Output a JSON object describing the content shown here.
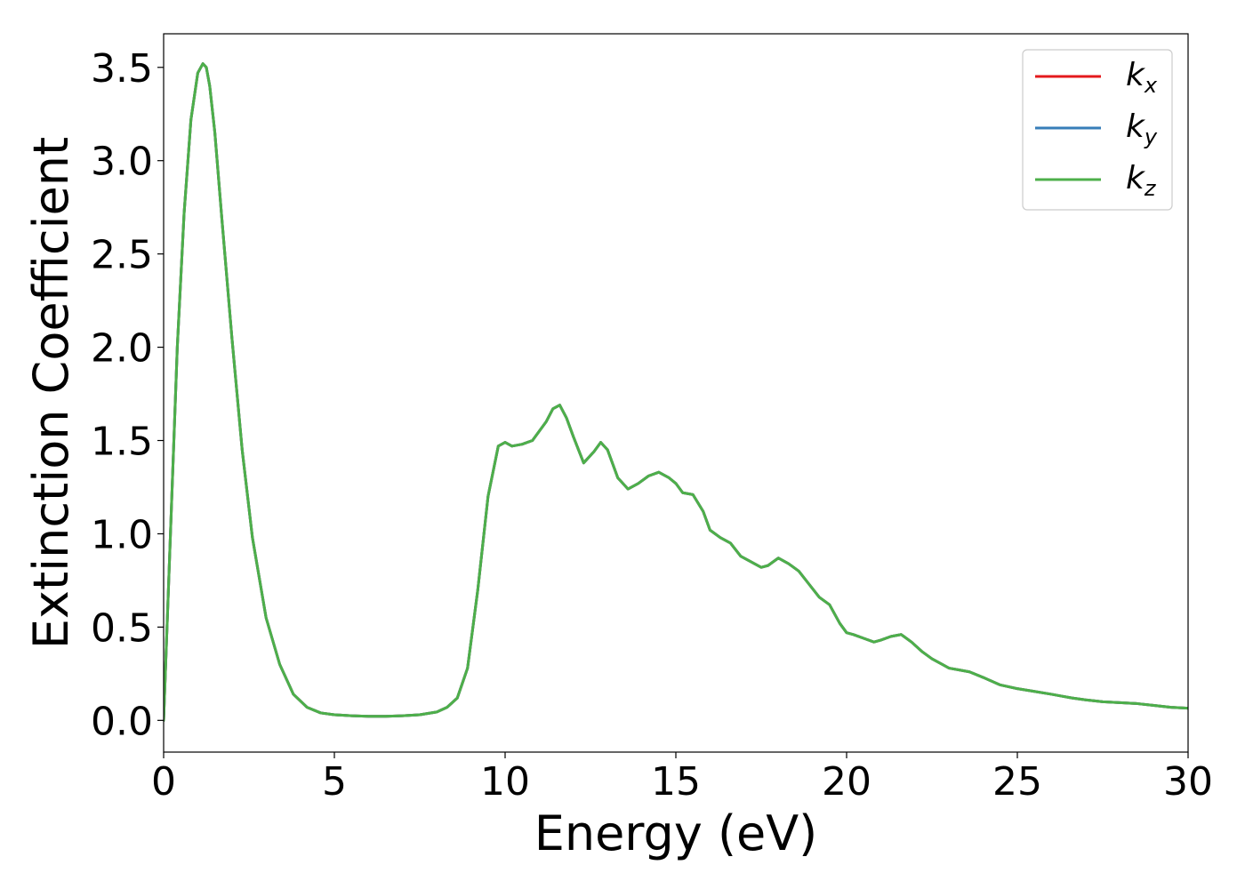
{
  "chart_data": {
    "type": "line",
    "xlabel": "Energy (eV)",
    "ylabel": "Extinction Coefficient",
    "xlim": [
      0,
      30
    ],
    "ylim": [
      -0.17,
      3.68
    ],
    "xticks": [
      0,
      5,
      10,
      15,
      20,
      25,
      30
    ],
    "xtick_labels": [
      "0",
      "5",
      "10",
      "15",
      "20",
      "25",
      "30"
    ],
    "yticks": [
      0.0,
      0.5,
      1.0,
      1.5,
      2.0,
      2.5,
      3.0,
      3.5
    ],
    "ytick_labels": [
      "0.0",
      "0.5",
      "1.0",
      "1.5",
      "2.0",
      "2.5",
      "3.0",
      "3.5"
    ],
    "grid": false,
    "legend_position": "top-right",
    "series": [
      {
        "name": "k",
        "subscript": "x",
        "color": "#e41a1c",
        "x": [
          0,
          0.2,
          0.4,
          0.6,
          0.8,
          1.0,
          1.15,
          1.25,
          1.35,
          1.5,
          1.7,
          2.0,
          2.3,
          2.6,
          3.0,
          3.4,
          3.8,
          4.2,
          4.6,
          5.0,
          5.5,
          6.0,
          6.5,
          7.0,
          7.5,
          8.0,
          8.3,
          8.6,
          8.9,
          9.2,
          9.5,
          9.8,
          10.0,
          10.2,
          10.5,
          10.8,
          11.0,
          11.2,
          11.4,
          11.6,
          11.8,
          12.0,
          12.3,
          12.6,
          12.8,
          13.0,
          13.3,
          13.6,
          13.9,
          14.2,
          14.5,
          14.8,
          15.0,
          15.2,
          15.5,
          15.8,
          16.0,
          16.3,
          16.6,
          16.9,
          17.2,
          17.5,
          17.7,
          18.0,
          18.3,
          18.6,
          18.9,
          19.2,
          19.5,
          19.8,
          20.0,
          20.2,
          20.5,
          20.8,
          21.0,
          21.3,
          21.6,
          21.9,
          22.2,
          22.5,
          22.8,
          23.0,
          23.3,
          23.6,
          24.0,
          24.5,
          25.0,
          25.5,
          26.0,
          26.3,
          26.6,
          27.0,
          27.5,
          28.0,
          28.5,
          29.0,
          29.5,
          30.0
        ],
        "y": [
          0.0,
          1.0,
          2.0,
          2.72,
          3.22,
          3.47,
          3.52,
          3.5,
          3.4,
          3.15,
          2.7,
          2.05,
          1.45,
          0.98,
          0.55,
          0.3,
          0.14,
          0.07,
          0.04,
          0.03,
          0.025,
          0.022,
          0.022,
          0.025,
          0.03,
          0.045,
          0.07,
          0.12,
          0.28,
          0.7,
          1.2,
          1.47,
          1.49,
          1.47,
          1.48,
          1.5,
          1.55,
          1.6,
          1.67,
          1.69,
          1.62,
          1.52,
          1.38,
          1.44,
          1.49,
          1.45,
          1.3,
          1.24,
          1.27,
          1.31,
          1.33,
          1.3,
          1.27,
          1.22,
          1.21,
          1.12,
          1.02,
          0.98,
          0.95,
          0.88,
          0.85,
          0.82,
          0.83,
          0.87,
          0.84,
          0.8,
          0.73,
          0.66,
          0.62,
          0.52,
          0.47,
          0.46,
          0.44,
          0.42,
          0.43,
          0.45,
          0.46,
          0.42,
          0.37,
          0.33,
          0.3,
          0.28,
          0.27,
          0.26,
          0.23,
          0.19,
          0.17,
          0.155,
          0.14,
          0.13,
          0.12,
          0.11,
          0.1,
          0.095,
          0.09,
          0.08,
          0.07,
          0.065
        ]
      },
      {
        "name": "k",
        "subscript": "y",
        "color": "#377eb8",
        "x": [
          0,
          0.2,
          0.4,
          0.6,
          0.8,
          1.0,
          1.15,
          1.25,
          1.35,
          1.5,
          1.7,
          2.0,
          2.3,
          2.6,
          3.0,
          3.4,
          3.8,
          4.2,
          4.6,
          5.0,
          5.5,
          6.0,
          6.5,
          7.0,
          7.5,
          8.0,
          8.3,
          8.6,
          8.9,
          9.2,
          9.5,
          9.8,
          10.0,
          10.2,
          10.5,
          10.8,
          11.0,
          11.2,
          11.4,
          11.6,
          11.8,
          12.0,
          12.3,
          12.6,
          12.8,
          13.0,
          13.3,
          13.6,
          13.9,
          14.2,
          14.5,
          14.8,
          15.0,
          15.2,
          15.5,
          15.8,
          16.0,
          16.3,
          16.6,
          16.9,
          17.2,
          17.5,
          17.7,
          18.0,
          18.3,
          18.6,
          18.9,
          19.2,
          19.5,
          19.8,
          20.0,
          20.2,
          20.5,
          20.8,
          21.0,
          21.3,
          21.6,
          21.9,
          22.2,
          22.5,
          22.8,
          23.0,
          23.3,
          23.6,
          24.0,
          24.5,
          25.0,
          25.5,
          26.0,
          26.3,
          26.6,
          27.0,
          27.5,
          28.0,
          28.5,
          29.0,
          29.5,
          30.0
        ],
        "y": [
          0.0,
          1.0,
          2.0,
          2.72,
          3.22,
          3.47,
          3.52,
          3.5,
          3.4,
          3.15,
          2.7,
          2.05,
          1.45,
          0.98,
          0.55,
          0.3,
          0.14,
          0.07,
          0.04,
          0.03,
          0.025,
          0.022,
          0.022,
          0.025,
          0.03,
          0.045,
          0.07,
          0.12,
          0.28,
          0.7,
          1.2,
          1.47,
          1.49,
          1.47,
          1.48,
          1.5,
          1.55,
          1.6,
          1.67,
          1.69,
          1.62,
          1.52,
          1.38,
          1.44,
          1.49,
          1.45,
          1.3,
          1.24,
          1.27,
          1.31,
          1.33,
          1.3,
          1.27,
          1.22,
          1.21,
          1.12,
          1.02,
          0.98,
          0.95,
          0.88,
          0.85,
          0.82,
          0.83,
          0.87,
          0.84,
          0.8,
          0.73,
          0.66,
          0.62,
          0.52,
          0.47,
          0.46,
          0.44,
          0.42,
          0.43,
          0.45,
          0.46,
          0.42,
          0.37,
          0.33,
          0.3,
          0.28,
          0.27,
          0.26,
          0.23,
          0.19,
          0.17,
          0.155,
          0.14,
          0.13,
          0.12,
          0.11,
          0.1,
          0.095,
          0.09,
          0.08,
          0.07,
          0.065
        ]
      },
      {
        "name": "k",
        "subscript": "z",
        "color": "#4daf4a",
        "x": [
          0,
          0.2,
          0.4,
          0.6,
          0.8,
          1.0,
          1.15,
          1.25,
          1.35,
          1.5,
          1.7,
          2.0,
          2.3,
          2.6,
          3.0,
          3.4,
          3.8,
          4.2,
          4.6,
          5.0,
          5.5,
          6.0,
          6.5,
          7.0,
          7.5,
          8.0,
          8.3,
          8.6,
          8.9,
          9.2,
          9.5,
          9.8,
          10.0,
          10.2,
          10.5,
          10.8,
          11.0,
          11.2,
          11.4,
          11.6,
          11.8,
          12.0,
          12.3,
          12.6,
          12.8,
          13.0,
          13.3,
          13.6,
          13.9,
          14.2,
          14.5,
          14.8,
          15.0,
          15.2,
          15.5,
          15.8,
          16.0,
          16.3,
          16.6,
          16.9,
          17.2,
          17.5,
          17.7,
          18.0,
          18.3,
          18.6,
          18.9,
          19.2,
          19.5,
          19.8,
          20.0,
          20.2,
          20.5,
          20.8,
          21.0,
          21.3,
          21.6,
          21.9,
          22.2,
          22.5,
          22.8,
          23.0,
          23.3,
          23.6,
          24.0,
          24.5,
          25.0,
          25.5,
          26.0,
          26.3,
          26.6,
          27.0,
          27.5,
          28.0,
          28.5,
          29.0,
          29.5,
          30.0
        ],
        "y": [
          0.0,
          1.0,
          2.0,
          2.72,
          3.22,
          3.47,
          3.52,
          3.5,
          3.4,
          3.15,
          2.7,
          2.05,
          1.45,
          0.98,
          0.55,
          0.3,
          0.14,
          0.07,
          0.04,
          0.03,
          0.025,
          0.022,
          0.022,
          0.025,
          0.03,
          0.045,
          0.07,
          0.12,
          0.28,
          0.7,
          1.2,
          1.47,
          1.49,
          1.47,
          1.48,
          1.5,
          1.55,
          1.6,
          1.67,
          1.69,
          1.62,
          1.52,
          1.38,
          1.44,
          1.49,
          1.45,
          1.3,
          1.24,
          1.27,
          1.31,
          1.33,
          1.3,
          1.27,
          1.22,
          1.21,
          1.12,
          1.02,
          0.98,
          0.95,
          0.88,
          0.85,
          0.82,
          0.83,
          0.87,
          0.84,
          0.8,
          0.73,
          0.66,
          0.62,
          0.52,
          0.47,
          0.46,
          0.44,
          0.42,
          0.43,
          0.45,
          0.46,
          0.42,
          0.37,
          0.33,
          0.3,
          0.28,
          0.27,
          0.26,
          0.23,
          0.19,
          0.17,
          0.155,
          0.14,
          0.13,
          0.12,
          0.11,
          0.1,
          0.095,
          0.09,
          0.08,
          0.07,
          0.065
        ]
      }
    ]
  }
}
